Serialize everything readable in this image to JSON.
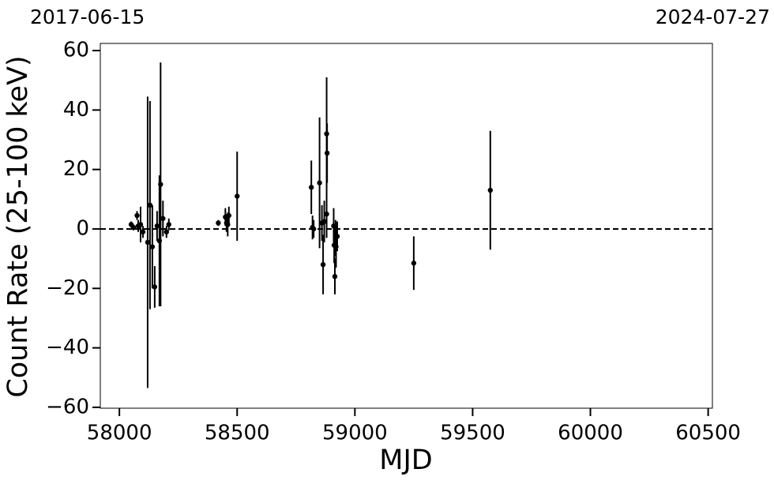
{
  "chart_data": {
    "type": "scatter",
    "annotations": [
      "2017-06-15",
      "2024-07-27"
    ],
    "x_label": "MJD",
    "y_label": "Count Rate (25-100 keV)",
    "x": [
      58050,
      58060,
      58075,
      58080,
      58090,
      58100,
      58120,
      58130,
      58140,
      58150,
      58160,
      58170,
      58175,
      58185,
      58200,
      58210,
      58420,
      58450,
      58455,
      58460,
      58465,
      58500,
      58815,
      58820,
      58825,
      58850,
      58860,
      58865,
      58870,
      58880,
      58880,
      58882,
      58910,
      58912,
      58915,
      58918,
      58920,
      58925,
      59250,
      59575
    ],
    "values": [
      1.5,
      0.5,
      4.5,
      1.0,
      1.5,
      -1,
      -4.5,
      8,
      -6,
      -19.5,
      1,
      -4,
      15,
      3.5,
      -1,
      1.5,
      2,
      4,
      2,
      1.5,
      4.5,
      11,
      14,
      0.5,
      0,
      15.5,
      2,
      -12,
      2.5,
      5,
      32,
      25.5,
      1,
      -5.5,
      -16,
      -3,
      -6,
      -2.5,
      -11.5,
      13
    ],
    "errors": [
      1,
      1,
      1.5,
      2,
      6,
      2,
      49,
      35,
      14,
      7,
      5,
      22,
      41,
      6,
      2,
      2,
      1,
      3,
      3,
      4,
      3,
      15,
      9,
      4,
      3,
      22,
      6,
      10,
      7,
      8,
      19,
      10,
      6,
      6,
      6,
      6,
      7,
      5,
      9,
      20
    ],
    "color": "#000000",
    "reference_line": 0,
    "xlim": [
      57919,
      60518
    ],
    "ylim": [
      -60.3,
      62.4
    ],
    "xticks": [
      58000,
      58500,
      59000,
      59500,
      60000,
      60500
    ],
    "yticks": [
      {
        "value": -60,
        "label": "−60"
      },
      {
        "value": -40,
        "label": "−40"
      },
      {
        "value": -20,
        "label": "−20"
      },
      0,
      20,
      40,
      60
    ]
  }
}
